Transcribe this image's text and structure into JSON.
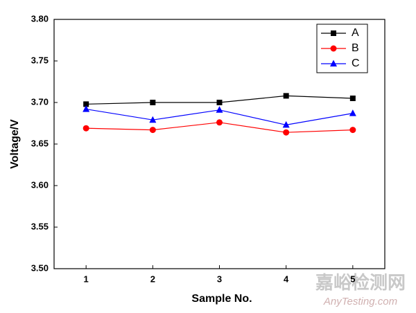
{
  "chart_data": {
    "type": "line",
    "x_label": "Sample No.",
    "y_label": "Voltage/V",
    "x": [
      1,
      2,
      3,
      4,
      5
    ],
    "series": [
      {
        "name": "A",
        "color": "#000000",
        "marker": "square",
        "values": [
          3.698,
          3.7,
          3.7,
          3.708,
          3.705
        ]
      },
      {
        "name": "B",
        "color": "#ff0000",
        "marker": "circle",
        "values": [
          3.669,
          3.667,
          3.676,
          3.664,
          3.667
        ]
      },
      {
        "name": "C",
        "color": "#0000ff",
        "marker": "triangle",
        "values": [
          3.692,
          3.679,
          3.691,
          3.673,
          3.687
        ]
      }
    ],
    "xlim": [
      0.52,
      5.48
    ],
    "xticks": [
      1,
      2,
      3,
      4,
      5
    ],
    "ylim": [
      3.5,
      3.8
    ],
    "yticks": [
      {
        "value": 3.5,
        "label": "3.50"
      },
      3.55,
      {
        "value": 3.6,
        "label": "3.60"
      },
      3.65,
      {
        "value": 3.7,
        "label": "3.70"
      },
      3.75,
      {
        "value": 3.8,
        "label": "3.80"
      }
    ],
    "grid": false,
    "legend": "upper right"
  },
  "watermark": {
    "title": "嘉峪检测网",
    "url": "AnyTesting.com"
  }
}
